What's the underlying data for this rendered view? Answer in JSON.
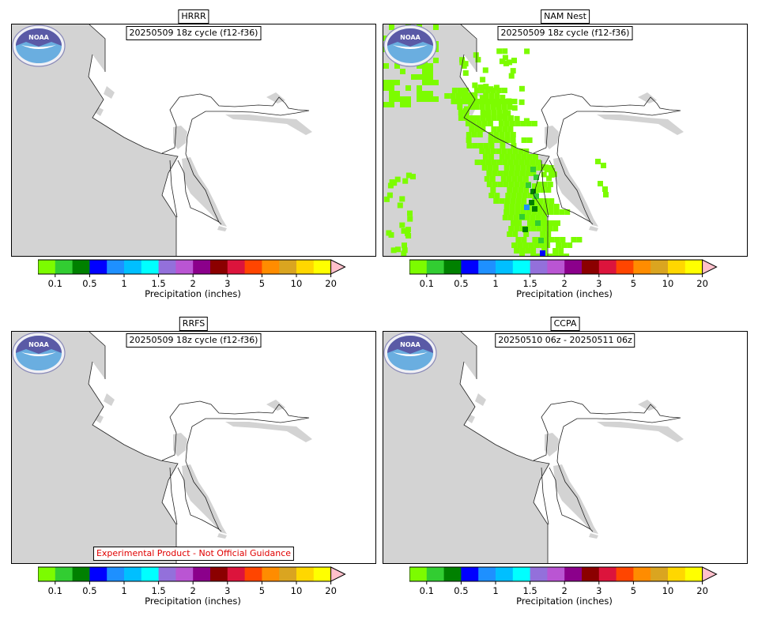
{
  "panels": [
    {
      "title": "HRRR",
      "subtitle": "20250509 18z cycle (f12-f36)",
      "has_precip": false,
      "disclaimer": ""
    },
    {
      "title": "NAM Nest",
      "subtitle": "20250509 18z cycle (f12-f36)",
      "has_precip": true,
      "disclaimer": ""
    },
    {
      "title": "RRFS",
      "subtitle": "20250509 18z cycle (f12-f36)",
      "has_precip": false,
      "disclaimer": "Experimental Product - Not Official Guidance"
    },
    {
      "title": "CCPA",
      "subtitle": "20250510 06z - 20250511 06z",
      "has_precip": false,
      "disclaimer": ""
    }
  ],
  "colorbar": {
    "label": "Precipitation (inches)",
    "colors": [
      "#7cfc00",
      "#32cd32",
      "#008000",
      "#0000ff",
      "#1e90ff",
      "#00bfff",
      "#00ffff",
      "#9370db",
      "#ba55d3",
      "#8b008b",
      "#8b0000",
      "#dc143c",
      "#ff4500",
      "#ff8c00",
      "#daa520",
      "#ffd700",
      "#ffff00",
      "#ffc0cb"
    ],
    "ticks": [
      "0.1",
      "0.5",
      "1",
      "1.5",
      "2",
      "3",
      "5",
      "10",
      "20"
    ]
  },
  "logo": {
    "text": "NOAA",
    "icon": "noaa-logo-icon"
  },
  "colors": {
    "land": "#d3d3d3",
    "water": "#ffffff",
    "border": "#000000",
    "disclaimer": "#e00000"
  }
}
